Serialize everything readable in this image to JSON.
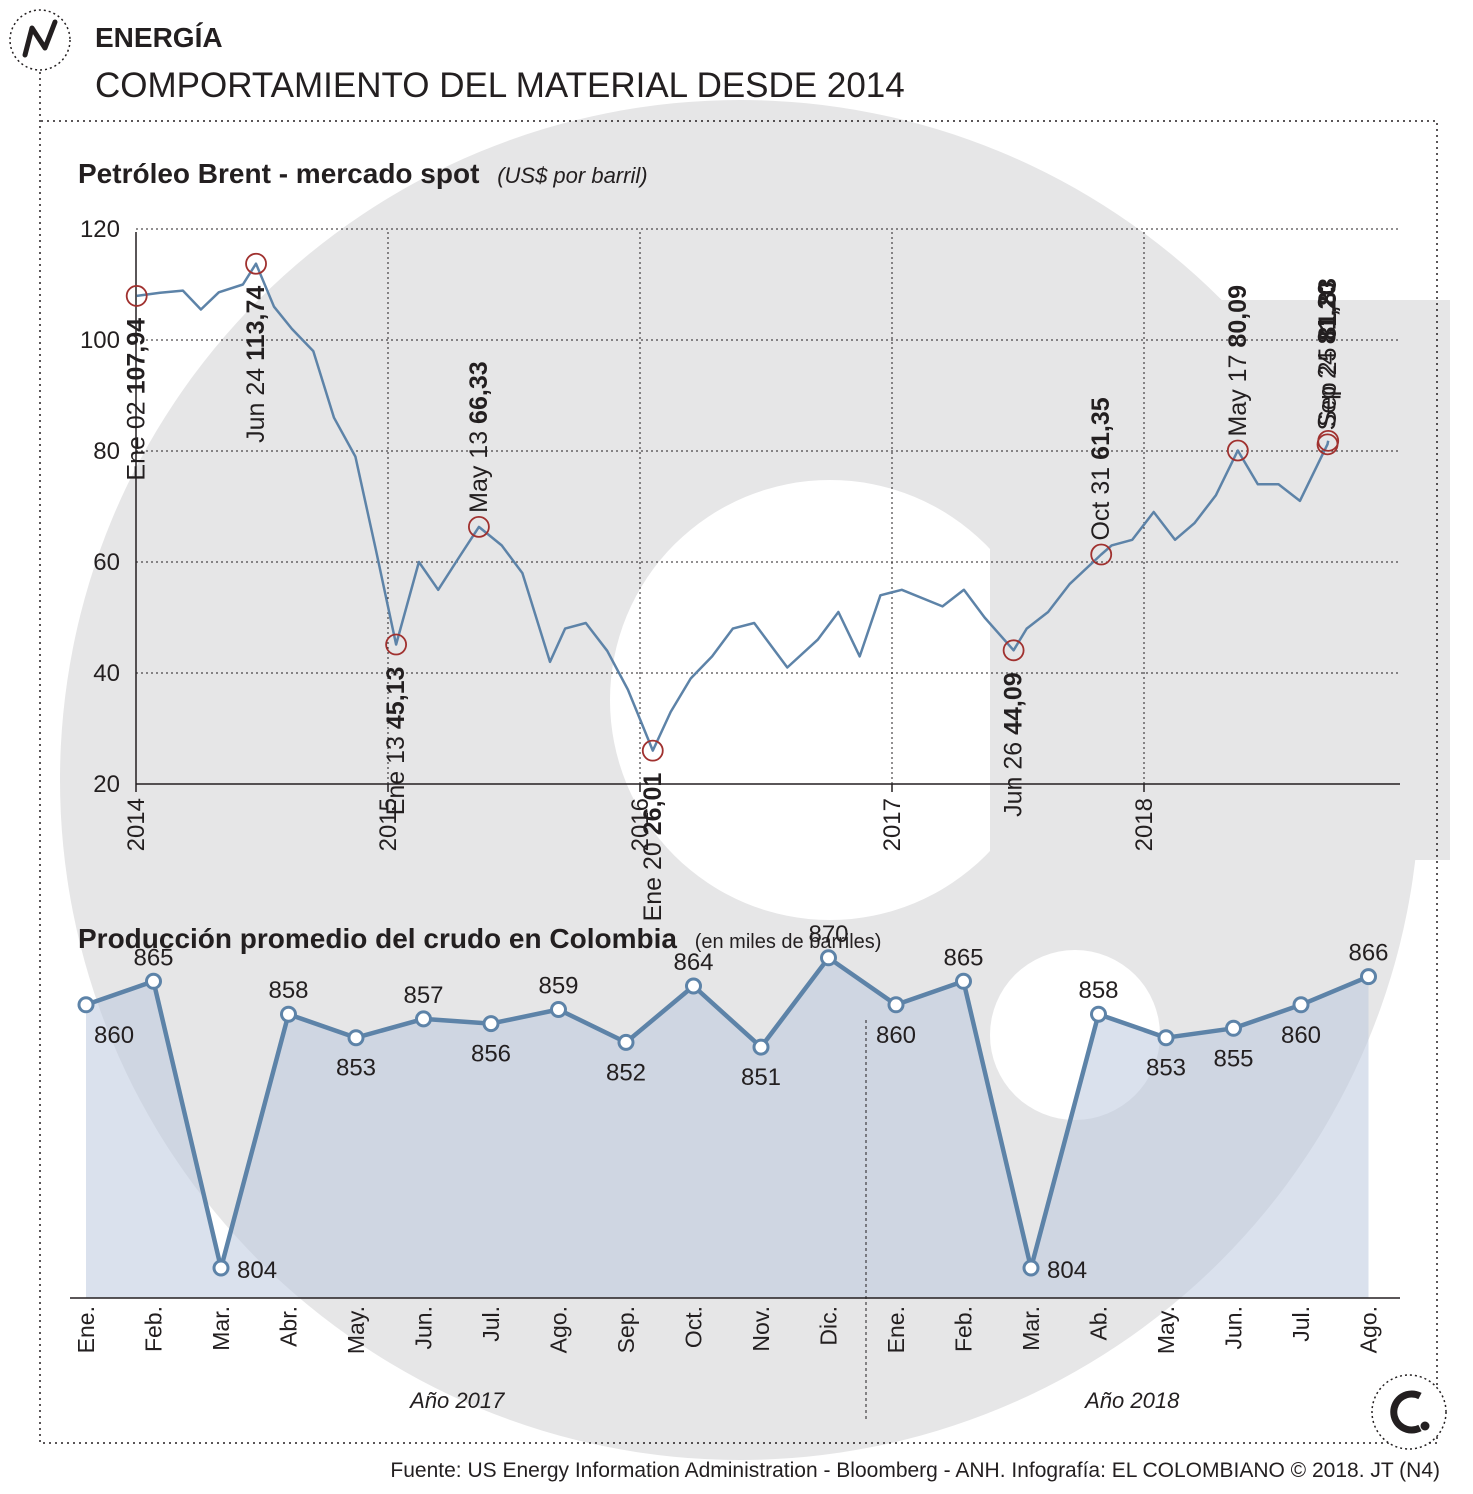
{
  "header": {
    "section": "ENERGÍA",
    "title": "COMPORTAMIENTO DEL MATERIAL DESDE 2014"
  },
  "chart_data": [
    {
      "type": "line",
      "title": "Petróleo Brent - mercado spot",
      "subtitle": "(US$ por barril)",
      "xlabel": "",
      "ylabel": "",
      "x_ticks": [
        "2014",
        "2015",
        "2016",
        "2017",
        "2018"
      ],
      "y_ticks": [
        20,
        40,
        60,
        80,
        100,
        120
      ],
      "xlim": [
        "2014-01-01",
        "2018-12-31"
      ],
      "ylim": [
        20,
        120
      ],
      "grid": true,
      "series": [
        {
          "values": [
            {
              "x": "2014-01-02",
              "y": 107.94
            },
            {
              "x": "2014-02-05",
              "y": 108.5
            },
            {
              "x": "2014-03-10",
              "y": 108.9
            },
            {
              "x": "2014-04-05",
              "y": 105.5
            },
            {
              "x": "2014-05-01",
              "y": 108.6
            },
            {
              "x": "2014-06-05",
              "y": 110.0
            },
            {
              "x": "2014-06-24",
              "y": 113.74
            },
            {
              "x": "2014-07-20",
              "y": 106.0
            },
            {
              "x": "2014-08-15",
              "y": 102.0
            },
            {
              "x": "2014-09-15",
              "y": 98.0
            },
            {
              "x": "2014-10-15",
              "y": 86.0
            },
            {
              "x": "2014-11-15",
              "y": 79.0
            },
            {
              "x": "2014-12-15",
              "y": 62.0
            },
            {
              "x": "2015-01-13",
              "y": 45.13
            },
            {
              "x": "2015-02-15",
              "y": 60.0
            },
            {
              "x": "2015-03-15",
              "y": 55.0
            },
            {
              "x": "2015-04-15",
              "y": 61.0
            },
            {
              "x": "2015-05-13",
              "y": 66.33
            },
            {
              "x": "2015-06-15",
              "y": 63.0
            },
            {
              "x": "2015-07-15",
              "y": 58.0
            },
            {
              "x": "2015-08-24",
              "y": 42.0
            },
            {
              "x": "2015-09-15",
              "y": 48.0
            },
            {
              "x": "2015-10-15",
              "y": 49.0
            },
            {
              "x": "2015-11-15",
              "y": 44.0
            },
            {
              "x": "2015-12-15",
              "y": 37.0
            },
            {
              "x": "2016-01-20",
              "y": 26.01
            },
            {
              "x": "2016-02-15",
              "y": 33.0
            },
            {
              "x": "2016-03-15",
              "y": 39.0
            },
            {
              "x": "2016-04-15",
              "y": 43.0
            },
            {
              "x": "2016-05-15",
              "y": 48.0
            },
            {
              "x": "2016-06-15",
              "y": 49.0
            },
            {
              "x": "2016-08-02",
              "y": 41.0
            },
            {
              "x": "2016-09-15",
              "y": 46.0
            },
            {
              "x": "2016-10-15",
              "y": 51.0
            },
            {
              "x": "2016-11-15",
              "y": 43.0
            },
            {
              "x": "2016-12-15",
              "y": 54.0
            },
            {
              "x": "2017-01-15",
              "y": 55.0
            },
            {
              "x": "2017-03-15",
              "y": 52.0
            },
            {
              "x": "2017-04-15",
              "y": 55.0
            },
            {
              "x": "2017-05-15",
              "y": 50.0
            },
            {
              "x": "2017-06-26",
              "y": 44.09
            },
            {
              "x": "2017-07-15",
              "y": 48.0
            },
            {
              "x": "2017-08-15",
              "y": 51.0
            },
            {
              "x": "2017-09-15",
              "y": 56.0
            },
            {
              "x": "2017-10-31",
              "y": 61.35
            },
            {
              "x": "2017-11-15",
              "y": 63.0
            },
            {
              "x": "2017-12-15",
              "y": 64.0
            },
            {
              "x": "2018-01-15",
              "y": 69.0
            },
            {
              "x": "2018-02-15",
              "y": 64.0
            },
            {
              "x": "2018-03-15",
              "y": 67.0
            },
            {
              "x": "2018-04-15",
              "y": 72.0
            },
            {
              "x": "2018-05-17",
              "y": 80.09
            },
            {
              "x": "2018-06-15",
              "y": 74.0
            },
            {
              "x": "2018-07-15",
              "y": 74.0
            },
            {
              "x": "2018-08-15",
              "y": 71.0
            },
            {
              "x": "2018-09-24",
              "y": 81.2
            },
            {
              "x": "2018-09-25",
              "y": 81.83
            }
          ]
        }
      ],
      "annotations": [
        {
          "date_label": "Ene 02",
          "value_label": "107,94",
          "x": "2014-01-02",
          "y": 107.94
        },
        {
          "date_label": "Jun 24",
          "value_label": "113,74",
          "x": "2014-06-24",
          "y": 113.74
        },
        {
          "date_label": "Ene 13",
          "value_label": "45,13",
          "x": "2015-01-13",
          "y": 45.13
        },
        {
          "date_label": "May 13",
          "value_label": "66,33",
          "x": "2015-05-13",
          "y": 66.33
        },
        {
          "date_label": "Ene 20",
          "value_label": "26,01",
          "x": "2016-01-20",
          "y": 26.01
        },
        {
          "date_label": "Jun 26",
          "value_label": "44,09",
          "x": "2017-06-26",
          "y": 44.09
        },
        {
          "date_label": "Oct 31",
          "value_label": "61,35",
          "x": "2017-10-31",
          "y": 61.35
        },
        {
          "date_label": "May 17",
          "value_label": "80,09",
          "x": "2018-05-17",
          "y": 80.09
        },
        {
          "date_label": "Sep 24",
          "value_label": "81,20",
          "x": "2018-09-24",
          "y": 81.2
        },
        {
          "date_label": "Sep 25",
          "value_label": "81,83",
          "x": "2018-09-25",
          "y": 81.83
        }
      ]
    },
    {
      "type": "area",
      "title": "Producción promedio del crudo en Colombia",
      "subtitle": "(en miles de barriles)",
      "categories": [
        "Ene.",
        "Feb.",
        "Mar.",
        "Abr.",
        "May.",
        "Jun.",
        "Jul.",
        "Ago.",
        "Sep.",
        "Oct.",
        "Nov.",
        "Dic.",
        "Ene.",
        "Feb.",
        "Mar.",
        "Ab.",
        "May.",
        "Jun.",
        "Jul.",
        "Ago."
      ],
      "values": [
        860,
        865,
        804,
        858,
        853,
        857,
        856,
        859,
        852,
        864,
        851,
        870,
        860,
        865,
        804,
        858,
        853,
        855,
        860,
        866
      ],
      "groups": [
        {
          "label": "Año 2017",
          "start": 0,
          "end": 11
        },
        {
          "label": "Año 2018",
          "start": 12,
          "end": 19
        }
      ],
      "ylim": [
        800,
        870
      ]
    }
  ],
  "footer": {
    "source": "Fuente: US Energy Information Administration - Bloomberg - ANH. Infografía: EL COLOMBIANO © 2018. JT (N4)"
  }
}
